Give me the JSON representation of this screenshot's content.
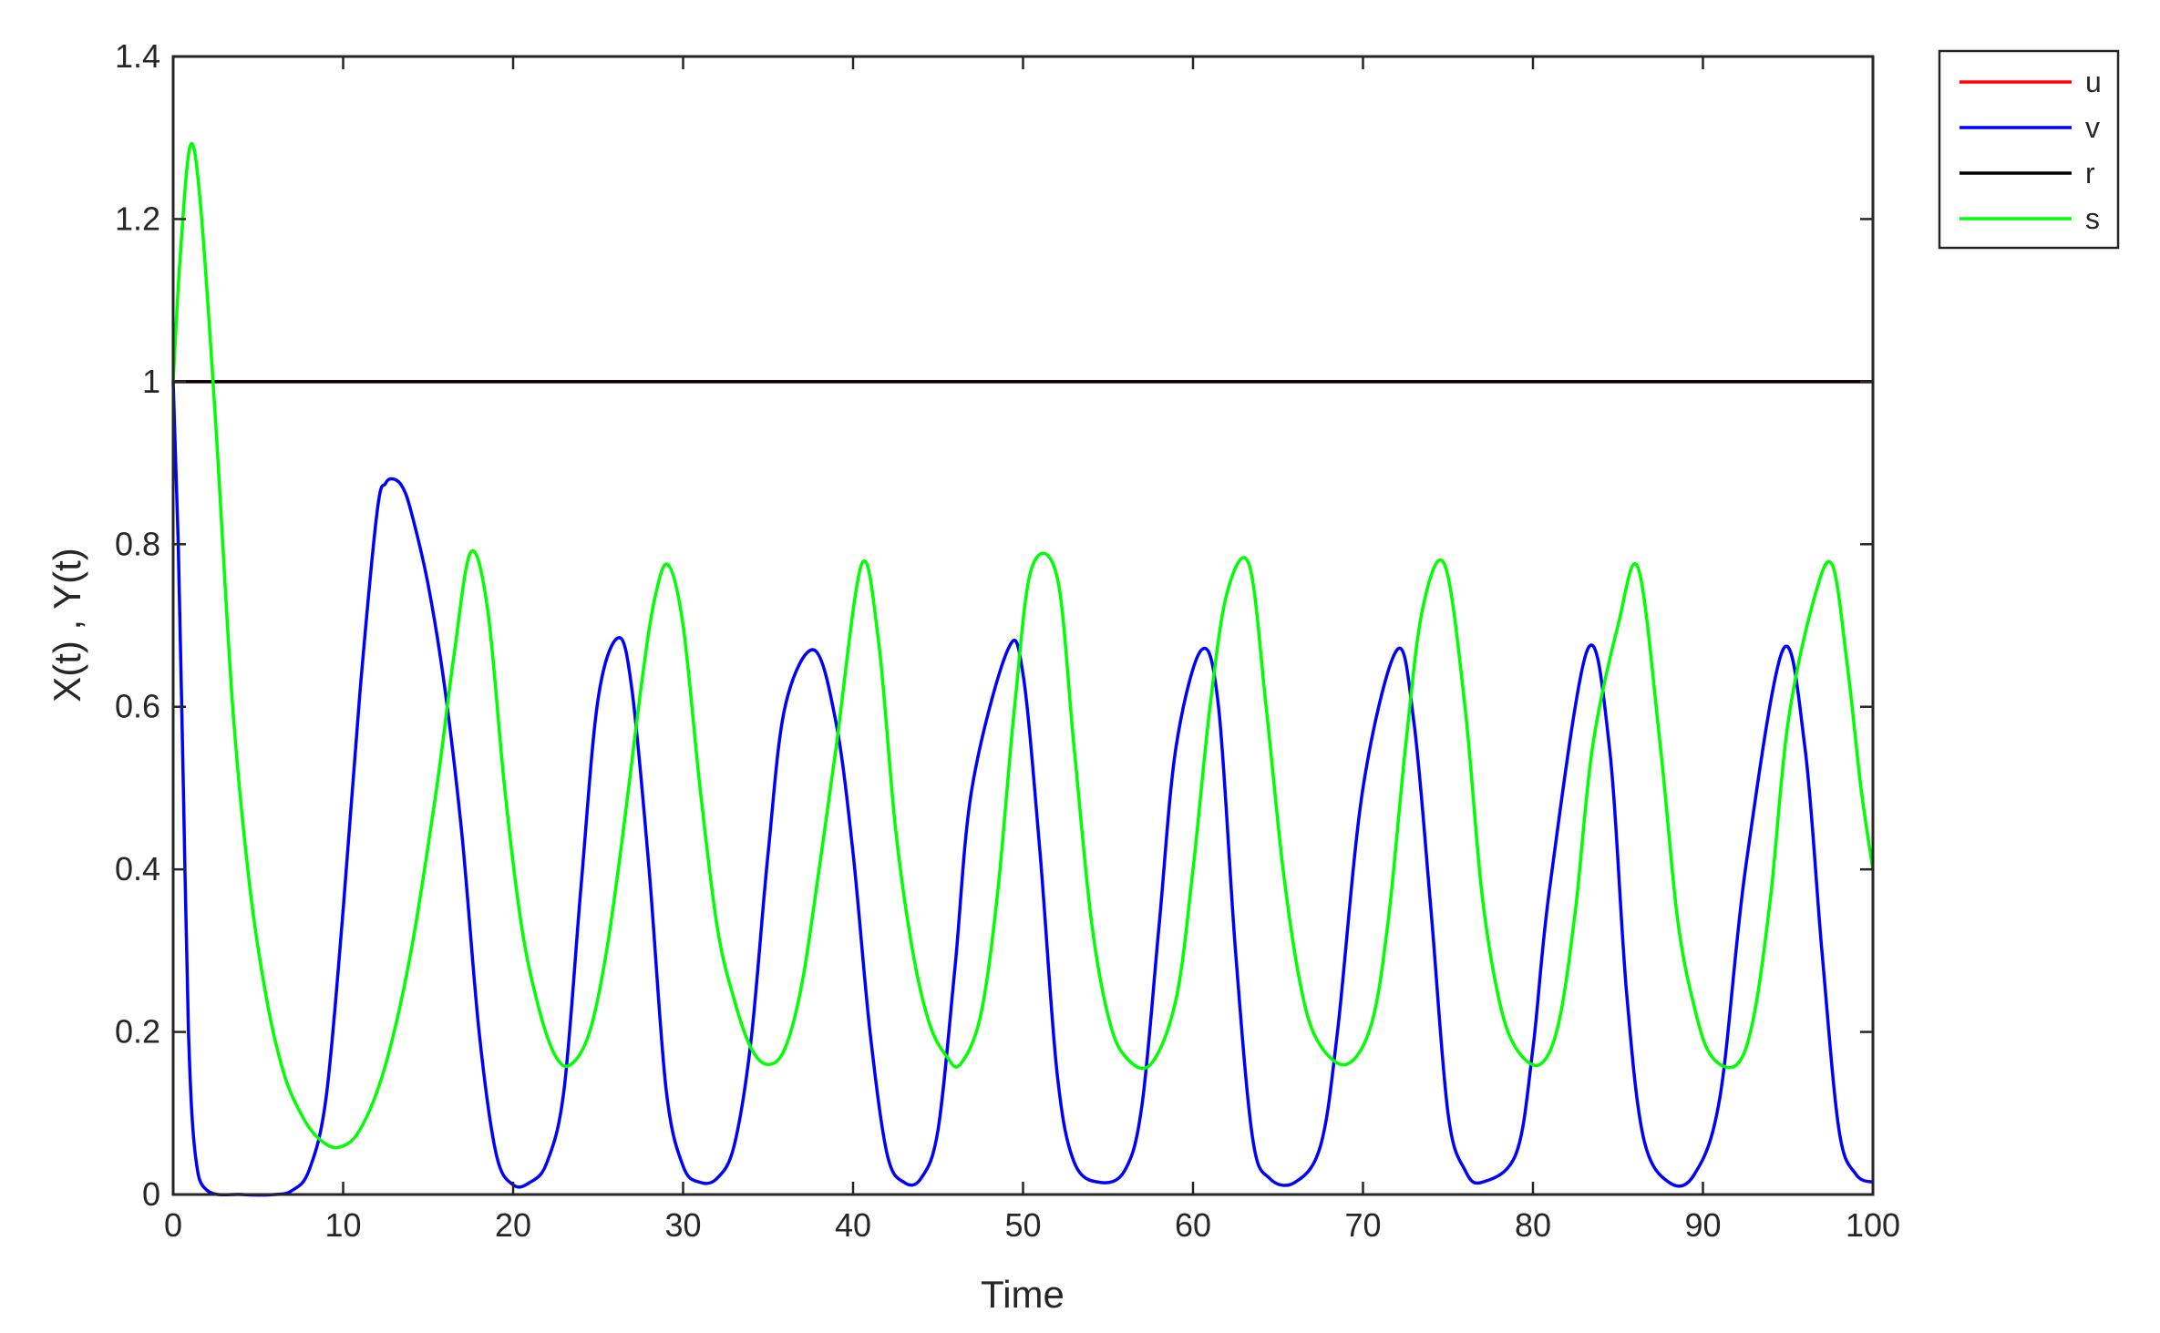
{
  "chart_data": {
    "type": "line",
    "title": "",
    "xlabel": "Time",
    "ylabel": "X(t) , Y(t)",
    "xlim": [
      0,
      100
    ],
    "ylim": [
      0,
      1.4
    ],
    "xticks": [
      "0",
      "10",
      "20",
      "30",
      "40",
      "50",
      "60",
      "70",
      "80",
      "90",
      "100"
    ],
    "yticks": [
      "0",
      "0.2",
      "0.4",
      "0.6",
      "0.8",
      "1",
      "1.2",
      "1.4"
    ],
    "grid": false,
    "legend_position": "outside top-right",
    "series": [
      {
        "name": "u",
        "color": "#ff0000",
        "x": [
          0,
          100
        ],
        "y": [
          1,
          1
        ],
        "hidden_under_other_series": true
      },
      {
        "name": "v",
        "color": "#0000ff",
        "x": [
          0,
          0.3,
          0.6,
          0.9,
          1.3,
          2,
          4,
          6,
          7,
          8,
          9,
          10,
          11,
          12,
          12.5,
          13,
          13.5,
          14,
          15,
          16,
          17,
          18,
          19,
          20,
          21,
          22,
          23,
          24,
          25,
          26.2,
          27,
          28,
          29,
          30,
          31,
          32,
          33,
          34,
          35,
          36,
          37.7,
          39,
          40,
          41,
          42,
          43,
          44,
          45,
          46,
          47,
          49.1,
          50,
          51,
          52,
          53,
          54.5,
          56,
          57,
          58,
          59,
          60.5,
          61.5,
          62.5,
          63.5,
          64.5,
          66,
          67.5,
          68.5,
          70,
          72,
          73,
          74,
          75,
          76,
          77,
          79,
          80,
          81,
          83.2,
          84.5,
          85.5,
          86.5,
          88,
          89.5,
          91,
          92.5,
          94.7,
          96,
          97,
          98,
          99,
          100
        ],
        "y": [
          1,
          0.8,
          0.5,
          0.2,
          0.05,
          0.005,
          0.0,
          0.0,
          0.005,
          0.03,
          0.12,
          0.35,
          0.62,
          0.84,
          0.875,
          0.88,
          0.87,
          0.84,
          0.75,
          0.62,
          0.44,
          0.2,
          0.05,
          0.012,
          0.015,
          0.04,
          0.13,
          0.38,
          0.61,
          0.685,
          0.62,
          0.4,
          0.13,
          0.035,
          0.015,
          0.02,
          0.06,
          0.19,
          0.42,
          0.6,
          0.67,
          0.58,
          0.42,
          0.2,
          0.05,
          0.015,
          0.02,
          0.08,
          0.28,
          0.5,
          0.67,
          0.64,
          0.42,
          0.15,
          0.04,
          0.015,
          0.03,
          0.11,
          0.33,
          0.55,
          0.67,
          0.6,
          0.3,
          0.07,
          0.02,
          0.015,
          0.06,
          0.2,
          0.5,
          0.67,
          0.58,
          0.35,
          0.1,
          0.03,
          0.015,
          0.05,
          0.18,
          0.38,
          0.67,
          0.55,
          0.25,
          0.07,
          0.015,
          0.025,
          0.12,
          0.4,
          0.67,
          0.55,
          0.3,
          0.08,
          0.025,
          0.015
        ]
      },
      {
        "name": "r",
        "color": "#000000",
        "x": [
          0,
          100
        ],
        "y": [
          1,
          1
        ],
        "hidden_under_other_series": true
      },
      {
        "name": "s",
        "color": "#00ff00",
        "x": [
          0,
          0.4,
          1,
          1.6,
          2.5,
          3.5,
          4.5,
          5.5,
          6.5,
          7.5,
          8.5,
          9.7,
          11,
          12.5,
          14,
          15.5,
          16.5,
          17.5,
          18.5,
          19.5,
          20.5,
          21.5,
          22.5,
          23.4,
          24.5,
          25.5,
          26.5,
          27.5,
          28.3,
          29.1,
          30,
          31,
          32,
          33,
          34,
          35,
          36,
          37,
          38,
          39,
          40.5,
          41.5,
          42.5,
          43.5,
          44.5,
          45.5,
          46.3,
          47.5,
          48.5,
          49.5,
          50.5,
          52,
          53,
          54,
          55,
          56,
          57.5,
          59,
          60,
          61,
          62,
          63.3,
          64.3,
          65.3,
          66.3,
          67.3,
          69,
          70.5,
          71.5,
          72.5,
          73.5,
          74.8,
          76,
          77,
          78,
          79,
          80.4,
          81.5,
          82.5,
          83.5,
          85,
          86.2,
          87.5,
          88.5,
          89.5,
          90.5,
          92,
          93,
          94,
          95,
          96.5,
          97.6,
          98.5,
          99.3,
          100
        ],
        "y": [
          1,
          1.15,
          1.29,
          1.22,
          0.95,
          0.6,
          0.38,
          0.24,
          0.15,
          0.1,
          0.07,
          0.058,
          0.08,
          0.16,
          0.3,
          0.5,
          0.66,
          0.79,
          0.72,
          0.5,
          0.33,
          0.23,
          0.17,
          0.16,
          0.2,
          0.3,
          0.45,
          0.62,
          0.73,
          0.775,
          0.7,
          0.5,
          0.33,
          0.24,
          0.18,
          0.16,
          0.18,
          0.26,
          0.4,
          0.55,
          0.775,
          0.68,
          0.45,
          0.3,
          0.21,
          0.17,
          0.16,
          0.22,
          0.37,
          0.6,
          0.77,
          0.76,
          0.55,
          0.34,
          0.22,
          0.17,
          0.16,
          0.24,
          0.4,
          0.6,
          0.74,
          0.775,
          0.6,
          0.4,
          0.26,
          0.19,
          0.16,
          0.21,
          0.34,
          0.55,
          0.72,
          0.775,
          0.6,
          0.37,
          0.24,
          0.18,
          0.16,
          0.21,
          0.35,
          0.55,
          0.7,
          0.77,
          0.55,
          0.34,
          0.23,
          0.17,
          0.16,
          0.22,
          0.37,
          0.58,
          0.73,
          0.775,
          0.65,
          0.5,
          0.4
        ]
      }
    ]
  }
}
